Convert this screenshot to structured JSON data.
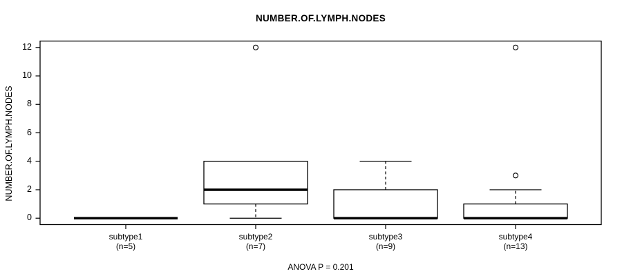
{
  "chart_data": {
    "type": "boxplot",
    "title": "NUMBER.OF.LYMPH.NODES",
    "ylabel": "NUMBER.OF.LYMPH.NODES",
    "xlabel": "",
    "footnote": "ANOVA P = 0.201",
    "yticks": [
      0,
      2,
      4,
      6,
      8,
      10,
      12
    ],
    "ylim": [
      -0.45,
      12.45
    ],
    "grid": false,
    "legend": null,
    "groups": [
      {
        "label": "subtype1",
        "sublabel": "(n=5)",
        "n": 5,
        "min": 0,
        "q1": 0,
        "median": 0,
        "q3": 0,
        "max": 0,
        "outliers": []
      },
      {
        "label": "subtype2",
        "sublabel": "(n=7)",
        "n": 7,
        "min": 0,
        "q1": 1,
        "median": 2,
        "q3": 4,
        "max": 4,
        "outliers": [
          12
        ]
      },
      {
        "label": "subtype3",
        "sublabel": "(n=9)",
        "n": 9,
        "min": 0,
        "q1": 0,
        "median": 0,
        "q3": 2,
        "max": 4,
        "outliers": []
      },
      {
        "label": "subtype4",
        "sublabel": "(n=13)",
        "n": 13,
        "min": 0,
        "q1": 0,
        "median": 0,
        "q3": 1,
        "max": 2,
        "outliers": [
          3,
          12
        ]
      }
    ],
    "colors": {
      "line": "#000000",
      "box_fill": "#ffffff",
      "background": "#ffffff"
    }
  }
}
